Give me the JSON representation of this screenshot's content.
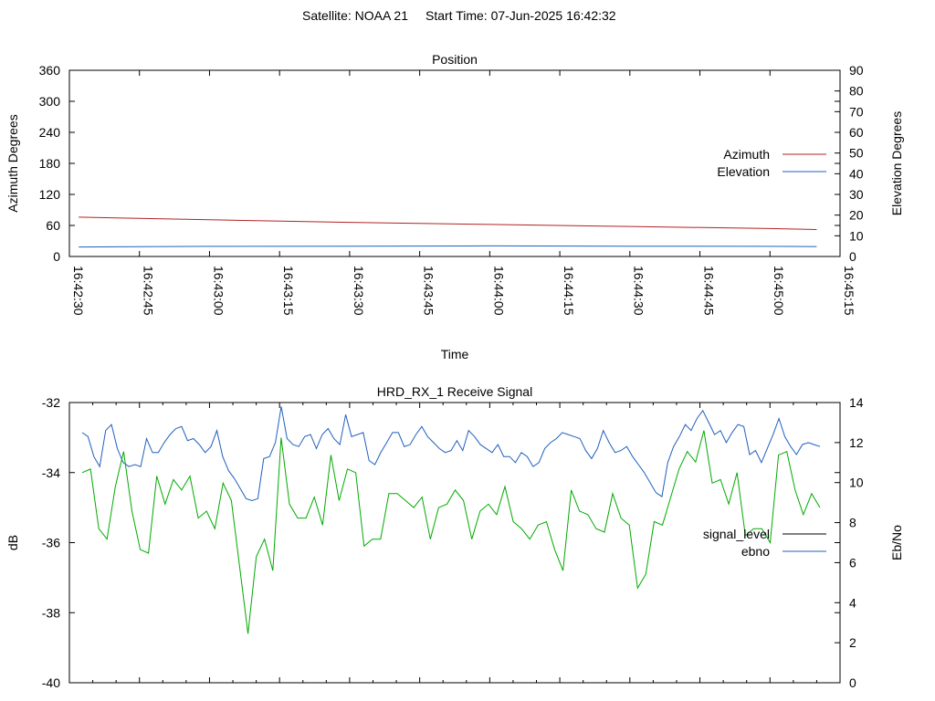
{
  "header": {
    "satellite": "Satellite: NOAA 21",
    "start_time": "Start Time: 07-Jun-2025 16:42:32"
  },
  "chart_data": [
    {
      "type": "line",
      "title": "Position",
      "xlabel": "Time",
      "ylabel": "Azimuth Degrees",
      "y2label": "Elevation Degrees",
      "ylim": [
        0,
        360
      ],
      "y2lim": [
        0,
        90
      ],
      "yticks": [
        "0",
        "60",
        "120",
        "180",
        "240",
        "300",
        "360"
      ],
      "y2ticks": [
        "0",
        "10",
        "20",
        "30",
        "40",
        "50",
        "60",
        "70",
        "80",
        "90"
      ],
      "xlim": [
        "16:42:30",
        "16:45:15"
      ],
      "xticks": [
        "16:42:30",
        "16:42:45",
        "16:43:00",
        "16:43:15",
        "16:43:30",
        "16:43:45",
        "16:44:00",
        "16:44:15",
        "16:44:30",
        "16:44:45",
        "16:45:00",
        "16:45:15"
      ],
      "legend_position": "right",
      "grid": false,
      "series": [
        {
          "name": "Azimuth",
          "axis": "left",
          "color": "#b22222",
          "x": [
            "16:42:32",
            "16:43:00",
            "16:43:30",
            "16:44:00",
            "16:44:30",
            "16:45:00",
            "16:45:10"
          ],
          "values": [
            76,
            71,
            66,
            62,
            58,
            54,
            52
          ]
        },
        {
          "name": "Elevation",
          "axis": "right",
          "color": "#1f5fbf",
          "x": [
            "16:42:32",
            "16:43:00",
            "16:43:30",
            "16:44:00",
            "16:44:30",
            "16:45:00",
            "16:45:10"
          ],
          "values": [
            4.6,
            4.9,
            5.0,
            5.1,
            5.0,
            4.9,
            4.8
          ]
        }
      ]
    },
    {
      "type": "line",
      "title": "HRD_RX_1 Receive Signal",
      "ylabel": "dB",
      "y2label": "Eb/No",
      "ylim": [
        -40,
        -32
      ],
      "y2lim": [
        0,
        14
      ],
      "yticks": [
        "-40",
        "-38",
        "-36",
        "-34",
        "-32"
      ],
      "y2ticks": [
        "0",
        "2",
        "4",
        "6",
        "8",
        "10",
        "12",
        "14"
      ],
      "legend_position": "right",
      "grid": false,
      "series": [
        {
          "name": "signal_level",
          "axis": "left",
          "color": "#000000",
          "legend_only": true,
          "values": []
        },
        {
          "name": "ebno",
          "axis": "right",
          "color": "#1f5fbf",
          "values": [
            12.5,
            12.3,
            11.3,
            10.8,
            12.6,
            12.9,
            11.7,
            11.0,
            10.8,
            10.9,
            10.8,
            12.2,
            11.5,
            11.5,
            12.0,
            12.4,
            12.7,
            12.8,
            12.1,
            12.2,
            11.9,
            11.5,
            11.8,
            12.6,
            11.3,
            10.6,
            10.2,
            9.7,
            9.2,
            9.1,
            9.2,
            11.2,
            11.3,
            12.0,
            13.8,
            12.2,
            11.9,
            11.8,
            12.3,
            12.4,
            11.7,
            12.4,
            12.7,
            12.2,
            11.9,
            13.4,
            12.3,
            12.4,
            12.5,
            11.1,
            10.9,
            11.5,
            12.0,
            12.5,
            12.5,
            11.8,
            11.9,
            12.4,
            12.8,
            12.3,
            12.0,
            11.7,
            11.5,
            11.6,
            12.1,
            11.6,
            12.6,
            12.3,
            11.9,
            11.7,
            11.5,
            11.9,
            11.3,
            11.3,
            11.0,
            11.5,
            11.3,
            10.8,
            11.0,
            11.7,
            12.0,
            12.2,
            12.5,
            12.4,
            12.3,
            12.2,
            11.6,
            11.2,
            11.7,
            12.6,
            12.0,
            11.5,
            11.6,
            11.8,
            11.3,
            10.9,
            10.5,
            10.0,
            9.5,
            9.3,
            11.0,
            11.8,
            12.3,
            12.9,
            12.6,
            13.2,
            13.6,
            13.0,
            12.4,
            12.6,
            12.0,
            12.5,
            12.9,
            12.8,
            11.4,
            11.6,
            11.0,
            11.7,
            12.4,
            13.2,
            12.3,
            11.8,
            11.4,
            11.9,
            12.0,
            11.9,
            11.8
          ]
        },
        {
          "name": "",
          "axis": "left",
          "color": "#00aa00",
          "values": [
            -34.0,
            -33.9,
            -35.6,
            -35.9,
            -34.4,
            -33.4,
            -35.1,
            -36.2,
            -36.3,
            -34.1,
            -34.9,
            -34.2,
            -34.5,
            -34.1,
            -35.3,
            -35.1,
            -35.6,
            -34.3,
            -34.8,
            -36.7,
            -38.6,
            -36.4,
            -35.9,
            -36.8,
            -33.0,
            -34.9,
            -35.3,
            -35.3,
            -34.7,
            -35.5,
            -33.5,
            -34.8,
            -33.9,
            -34.0,
            -36.1,
            -35.9,
            -35.9,
            -34.6,
            -34.6,
            -34.8,
            -35.0,
            -34.7,
            -35.9,
            -35.0,
            -34.9,
            -34.5,
            -34.8,
            -35.9,
            -35.1,
            -34.9,
            -35.2,
            -34.4,
            -35.4,
            -35.6,
            -35.9,
            -35.5,
            -35.4,
            -36.2,
            -36.8,
            -34.5,
            -35.1,
            -35.2,
            -35.6,
            -35.7,
            -34.6,
            -35.3,
            -35.5,
            -37.3,
            -36.9,
            -35.4,
            -35.5,
            -34.7,
            -33.9,
            -33.4,
            -33.7,
            -32.8,
            -34.3,
            -34.2,
            -34.9,
            -34.0,
            -35.8,
            -35.6,
            -35.6,
            -36.0,
            -33.5,
            -33.4,
            -34.5,
            -35.2,
            -34.6,
            -35.0
          ]
        }
      ]
    }
  ]
}
